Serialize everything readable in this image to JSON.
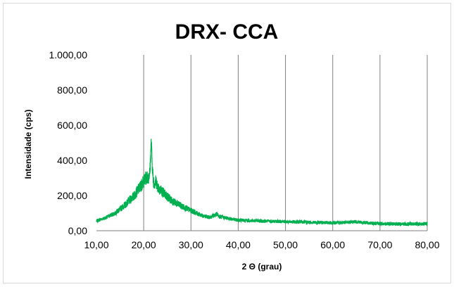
{
  "chart_data": {
    "type": "line",
    "title": "DRX- CCA",
    "xlabel": "2 Θ (grau)",
    "ylabel": "Intensidade (cps)",
    "xlim": [
      10,
      80
    ],
    "ylim": [
      0,
      1000
    ],
    "x_ticks": [
      "10,00",
      "20,00",
      "30,00",
      "40,00",
      "50,00",
      "60,00",
      "70,00",
      "80,00"
    ],
    "y_ticks": [
      "0,00",
      "200,00",
      "400,00",
      "600,00",
      "800,00",
      "1.000,00"
    ],
    "grid": {
      "vertical": true,
      "horizontal": false
    },
    "legend": "none",
    "series_color": "#00b050",
    "series": [
      {
        "x": [
          10,
          12,
          14,
          16,
          18,
          19,
          20,
          20.5,
          21,
          21.3,
          21.6,
          21.8,
          22,
          22.3,
          22.6,
          23,
          24,
          25,
          26,
          28,
          30,
          32,
          34,
          35.5,
          36,
          38,
          40,
          45,
          50,
          55,
          60,
          65,
          70,
          75,
          80
        ],
        "y": [
          55,
          75,
          100,
          145,
          200,
          240,
          280,
          300,
          305,
          330,
          510,
          380,
          290,
          270,
          280,
          250,
          220,
          195,
          170,
          140,
          115,
          90,
          75,
          95,
          80,
          70,
          60,
          55,
          52,
          48,
          45,
          50,
          40,
          38,
          40
        ]
      }
    ]
  }
}
